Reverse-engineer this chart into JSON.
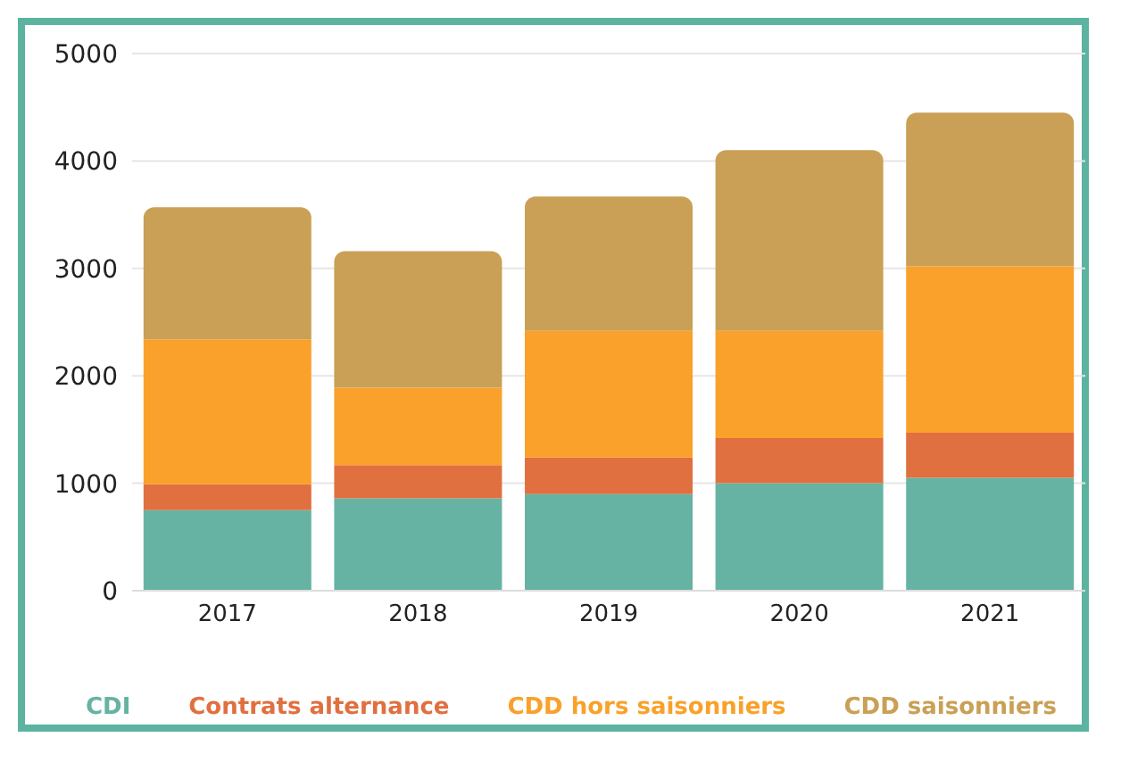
{
  "chart_data": {
    "type": "bar",
    "stacked": true,
    "categories": [
      "2017",
      "2018",
      "2019",
      "2020",
      "2021"
    ],
    "series": [
      {
        "name": "CDI",
        "color": "#66b3a3",
        "values": [
          750,
          860,
          900,
          1000,
          1050
        ]
      },
      {
        "name": "Contrats alternance",
        "color": "#e07040",
        "values": [
          240,
          310,
          340,
          420,
          420
        ]
      },
      {
        "name": "CDD hors saisonniers",
        "color": "#f9a12a",
        "values": [
          1350,
          720,
          1180,
          1000,
          1550
        ]
      },
      {
        "name": "CDD saisonniers",
        "color": "#c9a055",
        "values": [
          1230,
          1270,
          1250,
          1680,
          1430
        ]
      }
    ],
    "ylim": [
      0,
      5000
    ],
    "yticks": [
      0,
      1000,
      2000,
      3000,
      4000,
      5000
    ],
    "grid": "y",
    "legend": "bottom"
  }
}
